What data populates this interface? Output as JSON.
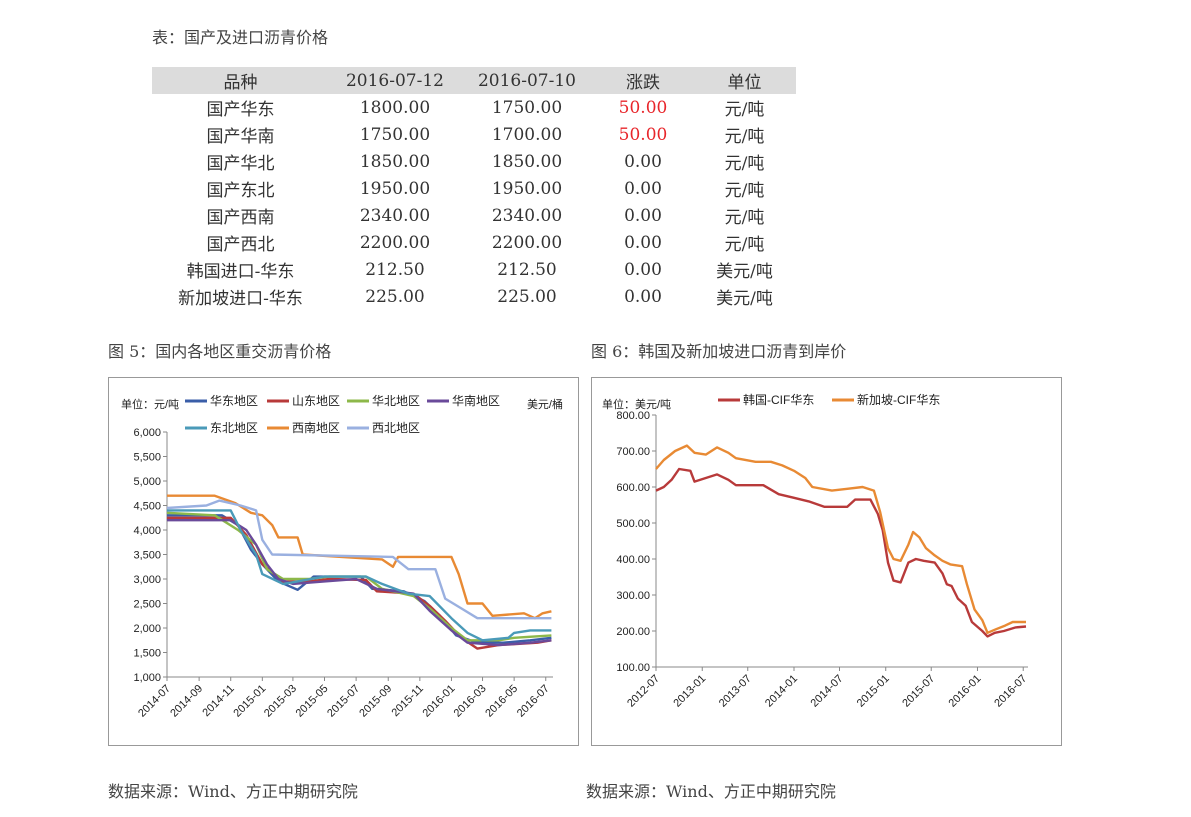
{
  "table_caption": "表：国产及进口沥青价格",
  "table": {
    "headers": [
      "品种",
      "2016-07-12",
      "2016-07-10",
      "涨跌",
      "单位"
    ],
    "rows": [
      [
        "国产华东",
        "1800.00",
        "1750.00",
        "50.00",
        "元/吨"
      ],
      [
        "国产华南",
        "1750.00",
        "1700.00",
        "50.00",
        "元/吨"
      ],
      [
        "国产华北",
        "1850.00",
        "1850.00",
        "0.00",
        "元/吨"
      ],
      [
        "国产东北",
        "1950.00",
        "1950.00",
        "0.00",
        "元/吨"
      ],
      [
        "国产西南",
        "2340.00",
        "2340.00",
        "0.00",
        "元/吨"
      ],
      [
        "国产西北",
        "2200.00",
        "2200.00",
        "0.00",
        "元/吨"
      ],
      [
        "韩国进口-华东",
        "212.50",
        "212.50",
        "0.00",
        "美元/吨"
      ],
      [
        "新加坡进口-华东",
        "225.00",
        "225.00",
        "0.00",
        "美元/吨"
      ]
    ],
    "up_color": "#e8262b"
  },
  "fig5_caption": "图 5：国内各地区重交沥青价格",
  "fig6_caption": "图 6：韩国及新加坡进口沥青到岸价",
  "source1": "数据来源：Wind、方正中期研究院",
  "source2": "数据来源：Wind、方正中期研究院",
  "chart_data": [
    {
      "type": "line",
      "unit_left": "单位：元/吨",
      "unit_right": "美元/桶",
      "x_ticks": [
        "2014-07",
        "2014-09",
        "2014-11",
        "2015-01",
        "2015-03",
        "2015-05",
        "2015-07",
        "2015-09",
        "2015-11",
        "2016-01",
        "2016-03",
        "2016-05",
        "2016-07"
      ],
      "x_range": [
        "2014-07-01",
        "2016-07-15"
      ],
      "ylim": [
        1000,
        6000
      ],
      "y_ticks": [
        "1,000",
        "1,500",
        "2,000",
        "2,500",
        "3,000",
        "3,500",
        "4,000",
        "4,500",
        "5,000",
        "5,500",
        "6,000"
      ],
      "legend_position": "top",
      "series": [
        {
          "name": "华东地区",
          "color": "#3a5ea8",
          "points": [
            [
              "2014-07-01",
              4300
            ],
            [
              "2014-10-15",
              4300
            ],
            [
              "2014-11-15",
              4100
            ],
            [
              "2014-12-10",
              3600
            ],
            [
              "2015-01-01",
              3300
            ],
            [
              "2015-02-01",
              2950
            ],
            [
              "2015-03-10",
              2780
            ],
            [
              "2015-04-10",
              3050
            ],
            [
              "2015-07-10",
              3050
            ],
            [
              "2015-08-01",
              2800
            ],
            [
              "2015-10-01",
              2750
            ],
            [
              "2015-11-10",
              2550
            ],
            [
              "2015-12-10",
              2250
            ],
            [
              "2016-01-10",
              1850
            ],
            [
              "2016-02-20",
              1700
            ],
            [
              "2016-04-10",
              1700
            ],
            [
              "2016-06-01",
              1750
            ],
            [
              "2016-07-12",
              1800
            ]
          ]
        },
        {
          "name": "山东地区",
          "color": "#b83a3a",
          "points": [
            [
              "2014-07-01",
              4250
            ],
            [
              "2014-11-01",
              4250
            ],
            [
              "2014-12-01",
              3900
            ],
            [
              "2015-01-01",
              3300
            ],
            [
              "2015-02-10",
              2950
            ],
            [
              "2015-04-01",
              2950
            ],
            [
              "2015-05-10",
              3000
            ],
            [
              "2015-07-20",
              2980
            ],
            [
              "2015-08-10",
              2750
            ],
            [
              "2015-10-20",
              2700
            ],
            [
              "2015-11-20",
              2450
            ],
            [
              "2015-12-20",
              2150
            ],
            [
              "2016-01-20",
              1800
            ],
            [
              "2016-02-20",
              1580
            ],
            [
              "2016-04-01",
              1650
            ],
            [
              "2016-06-15",
              1700
            ],
            [
              "2016-07-12",
              1750
            ]
          ]
        },
        {
          "name": "华北地区",
          "color": "#8db84a",
          "points": [
            [
              "2014-07-01",
              4350
            ],
            [
              "2014-10-01",
              4300
            ],
            [
              "2014-11-15",
              4000
            ],
            [
              "2014-12-20",
              3700
            ],
            [
              "2015-01-10",
              3200
            ],
            [
              "2015-02-10",
              3000
            ],
            [
              "2015-04-01",
              3000
            ],
            [
              "2015-05-10",
              3050
            ],
            [
              "2015-07-20",
              3050
            ],
            [
              "2015-08-20",
              2800
            ],
            [
              "2015-10-20",
              2650
            ],
            [
              "2015-11-20",
              2400
            ],
            [
              "2016-01-01",
              2000
            ],
            [
              "2016-02-01",
              1750
            ],
            [
              "2016-04-01",
              1750
            ],
            [
              "2016-05-01",
              1800
            ],
            [
              "2016-07-12",
              1850
            ]
          ]
        },
        {
          "name": "华南地区",
          "color": "#6a4a9a",
          "points": [
            [
              "2014-07-01",
              4200
            ],
            [
              "2014-11-01",
              4200
            ],
            [
              "2014-12-01",
              4000
            ],
            [
              "2014-12-20",
              3700
            ],
            [
              "2015-01-10",
              3300
            ],
            [
              "2015-02-01",
              3000
            ],
            [
              "2015-03-01",
              2900
            ],
            [
              "2015-05-01",
              2950
            ],
            [
              "2015-07-01",
              3000
            ],
            [
              "2015-08-10",
              2800
            ],
            [
              "2015-10-20",
              2700
            ],
            [
              "2015-11-20",
              2350
            ],
            [
              "2016-01-01",
              1950
            ],
            [
              "2016-02-01",
              1700
            ],
            [
              "2016-04-01",
              1650
            ],
            [
              "2016-06-01",
              1700
            ],
            [
              "2016-07-12",
              1750
            ]
          ]
        },
        {
          "name": "东北地区",
          "color": "#4a9ab8",
          "points": [
            [
              "2014-07-01",
              4400
            ],
            [
              "2014-11-01",
              4400
            ],
            [
              "2014-11-20",
              4000
            ],
            [
              "2014-12-20",
              3500
            ],
            [
              "2015-01-01",
              3100
            ],
            [
              "2015-02-10",
              2900
            ],
            [
              "2015-03-10",
              2950
            ],
            [
              "2015-05-01",
              3050
            ],
            [
              "2015-07-20",
              3050
            ],
            [
              "2015-08-20",
              2900
            ],
            [
              "2015-10-10",
              2700
            ],
            [
              "2015-11-20",
              2650
            ],
            [
              "2016-01-01",
              2200
            ],
            [
              "2016-02-01",
              1900
            ],
            [
              "2016-03-01",
              1750
            ],
            [
              "2016-04-20",
              1800
            ],
            [
              "2016-05-01",
              1900
            ],
            [
              "2016-06-01",
              1950
            ],
            [
              "2016-07-12",
              1950
            ]
          ]
        },
        {
          "name": "西南地区",
          "color": "#e88a34",
          "points": [
            [
              "2014-07-01",
              4700
            ],
            [
              "2014-10-01",
              4700
            ],
            [
              "2014-11-10",
              4550
            ],
            [
              "2014-12-10",
              4350
            ],
            [
              "2015-01-01",
              4300
            ],
            [
              "2015-01-20",
              4100
            ],
            [
              "2015-02-01",
              3850
            ],
            [
              "2015-03-10",
              3850
            ],
            [
              "2015-03-20",
              3500
            ],
            [
              "2015-08-20",
              3400
            ],
            [
              "2015-09-10",
              3250
            ],
            [
              "2015-09-20",
              3450
            ],
            [
              "2015-12-10",
              3450
            ],
            [
              "2016-01-01",
              3450
            ],
            [
              "2016-01-15",
              3100
            ],
            [
              "2016-02-01",
              2500
            ],
            [
              "2016-03-01",
              2500
            ],
            [
              "2016-03-20",
              2250
            ],
            [
              "2016-05-20",
              2300
            ],
            [
              "2016-06-10",
              2200
            ],
            [
              "2016-06-25",
              2300
            ],
            [
              "2016-07-12",
              2340
            ]
          ]
        },
        {
          "name": "西北地区",
          "color": "#9ab0e0",
          "points": [
            [
              "2014-07-01",
              4450
            ],
            [
              "2014-09-15",
              4500
            ],
            [
              "2014-10-10",
              4600
            ],
            [
              "2014-11-20",
              4500
            ],
            [
              "2014-12-20",
              4400
            ],
            [
              "2015-01-01",
              3800
            ],
            [
              "2015-01-20",
              3500
            ],
            [
              "2015-09-10",
              3450
            ],
            [
              "2015-10-10",
              3200
            ],
            [
              "2015-12-01",
              3200
            ],
            [
              "2015-12-20",
              2600
            ],
            [
              "2016-01-20",
              2400
            ],
            [
              "2016-02-20",
              2200
            ],
            [
              "2016-05-10",
              2200
            ],
            [
              "2016-07-12",
              2200
            ]
          ]
        }
      ]
    },
    {
      "type": "line",
      "unit_left": "单位：美元/吨",
      "x_ticks": [
        "2012-07",
        "2013-01",
        "2013-07",
        "2014-01",
        "2014-07",
        "2015-01",
        "2015-07",
        "2016-01",
        "2016-07"
      ],
      "x_range": [
        "2012-07-01",
        "2016-07-20"
      ],
      "ylim": [
        100,
        800
      ],
      "y_ticks": [
        "100.00",
        "200.00",
        "300.00",
        "400.00",
        "500.00",
        "600.00",
        "700.00",
        "800.00"
      ],
      "legend_position": "top",
      "series": [
        {
          "name": "韩国-CIF华东",
          "color": "#b83a3a",
          "points": [
            [
              "2012-07-01",
              590
            ],
            [
              "2012-08-01",
              600
            ],
            [
              "2012-09-01",
              620
            ],
            [
              "2012-10-01",
              650
            ],
            [
              "2012-11-15",
              645
            ],
            [
              "2012-12-01",
              615
            ],
            [
              "2013-01-15",
              625
            ],
            [
              "2013-03-01",
              635
            ],
            [
              "2013-04-15",
              620
            ],
            [
              "2013-05-15",
              605
            ],
            [
              "2013-07-01",
              605
            ],
            [
              "2013-09-01",
              605
            ],
            [
              "2013-11-01",
              580
            ],
            [
              "2014-01-01",
              570
            ],
            [
              "2014-03-01",
              560
            ],
            [
              "2014-05-01",
              545
            ],
            [
              "2014-08-01",
              545
            ],
            [
              "2014-09-01",
              565
            ],
            [
              "2014-11-01",
              565
            ],
            [
              "2014-12-01",
              525
            ],
            [
              "2014-12-20",
              480
            ],
            [
              "2015-01-10",
              390
            ],
            [
              "2015-02-01",
              340
            ],
            [
              "2015-03-01",
              335
            ],
            [
              "2015-04-01",
              390
            ],
            [
              "2015-05-01",
              400
            ],
            [
              "2015-06-01",
              395
            ],
            [
              "2015-07-15",
              390
            ],
            [
              "2015-08-15",
              360
            ],
            [
              "2015-09-01",
              330
            ],
            [
              "2015-09-20",
              325
            ],
            [
              "2015-10-15",
              290
            ],
            [
              "2015-11-15",
              270
            ],
            [
              "2015-12-10",
              225
            ],
            [
              "2016-01-20",
              200
            ],
            [
              "2016-02-10",
              185
            ],
            [
              "2016-03-10",
              195
            ],
            [
              "2016-04-15",
              200
            ],
            [
              "2016-06-01",
              210
            ],
            [
              "2016-07-12",
              212.5
            ]
          ]
        },
        {
          "name": "新加坡-CIF华东",
          "color": "#e88a34",
          "points": [
            [
              "2012-07-01",
              650
            ],
            [
              "2012-08-01",
              675
            ],
            [
              "2012-09-15",
              700
            ],
            [
              "2012-11-01",
              715
            ],
            [
              "2012-12-01",
              695
            ],
            [
              "2013-01-15",
              690
            ],
            [
              "2013-03-01",
              710
            ],
            [
              "2013-04-15",
              695
            ],
            [
              "2013-05-15",
              680
            ],
            [
              "2013-08-01",
              670
            ],
            [
              "2013-10-01",
              670
            ],
            [
              "2013-11-15",
              660
            ],
            [
              "2014-01-01",
              645
            ],
            [
              "2014-02-15",
              625
            ],
            [
              "2014-03-15",
              600
            ],
            [
              "2014-06-01",
              590
            ],
            [
              "2014-08-01",
              595
            ],
            [
              "2014-10-01",
              600
            ],
            [
              "2014-11-15",
              590
            ],
            [
              "2014-12-10",
              530
            ],
            [
              "2015-01-10",
              430
            ],
            [
              "2015-02-01",
              400
            ],
            [
              "2015-03-01",
              395
            ],
            [
              "2015-04-01",
              440
            ],
            [
              "2015-04-20",
              475
            ],
            [
              "2015-05-15",
              460
            ],
            [
              "2015-06-10",
              430
            ],
            [
              "2015-07-15",
              410
            ],
            [
              "2015-08-15",
              395
            ],
            [
              "2015-09-15",
              385
            ],
            [
              "2015-11-01",
              380
            ],
            [
              "2015-11-20",
              330
            ],
            [
              "2015-12-20",
              260
            ],
            [
              "2016-01-20",
              230
            ],
            [
              "2016-02-10",
              195
            ],
            [
              "2016-03-15",
              205
            ],
            [
              "2016-04-20",
              215
            ],
            [
              "2016-05-20",
              225
            ],
            [
              "2016-07-12",
              225
            ]
          ]
        }
      ]
    }
  ]
}
